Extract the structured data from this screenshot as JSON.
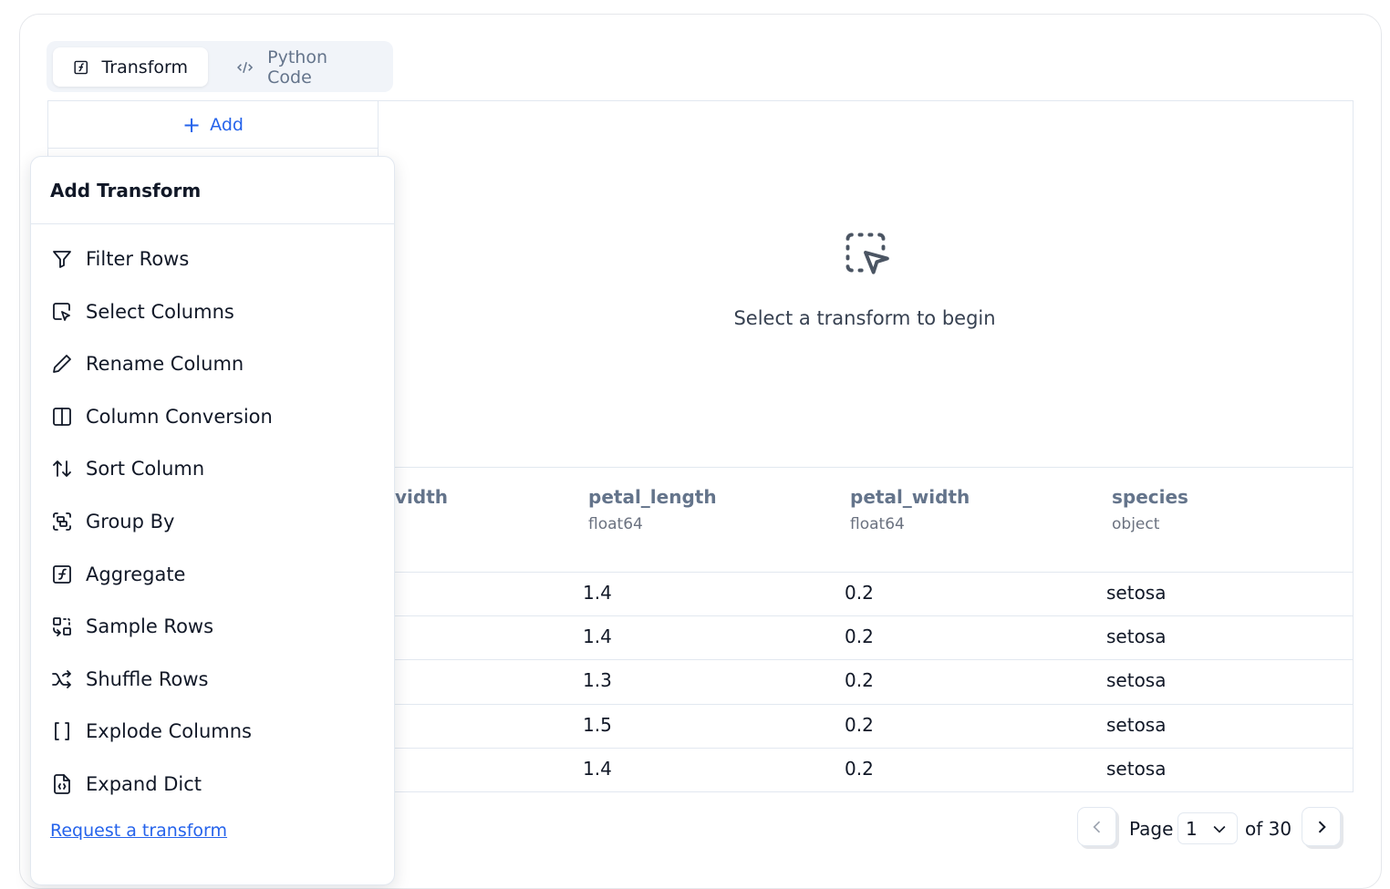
{
  "tabs": [
    {
      "label": "Transform",
      "icon": "function-square-icon",
      "active": true
    },
    {
      "label": "Python Code",
      "icon": "code-icon",
      "active": false
    }
  ],
  "add_label": "Add",
  "empty_state": {
    "icon": "dashed-select-pointer-icon",
    "text": "Select a transform to begin"
  },
  "popup": {
    "title": "Add Transform",
    "items": [
      {
        "label": "Filter Rows",
        "icon": "filter-icon"
      },
      {
        "label": "Select Columns",
        "icon": "select-columns-icon"
      },
      {
        "label": "Rename Column",
        "icon": "pencil-icon"
      },
      {
        "label": "Column Conversion",
        "icon": "columns-icon"
      },
      {
        "label": "Sort Column",
        "icon": "sort-arrows-icon"
      },
      {
        "label": "Group By",
        "icon": "group-icon"
      },
      {
        "label": "Aggregate",
        "icon": "function-square-icon"
      },
      {
        "label": "Sample Rows",
        "icon": "sample-icon"
      },
      {
        "label": "Shuffle Rows",
        "icon": "shuffle-icon"
      },
      {
        "label": "Explode Columns",
        "icon": "brackets-icon"
      },
      {
        "label": "Expand Dict",
        "icon": "file-json-icon"
      }
    ],
    "request_link": "Request a transform"
  },
  "table": {
    "columns": [
      {
        "name": "vidth",
        "type": ""
      },
      {
        "name": "petal_length",
        "type": "float64"
      },
      {
        "name": "petal_width",
        "type": "float64"
      },
      {
        "name": "species",
        "type": "object"
      }
    ],
    "rows": [
      [
        "1.4",
        "0.2",
        "setosa"
      ],
      [
        "1.4",
        "0.2",
        "setosa"
      ],
      [
        "1.3",
        "0.2",
        "setosa"
      ],
      [
        "1.5",
        "0.2",
        "setosa"
      ],
      [
        "1.4",
        "0.2",
        "setosa"
      ]
    ]
  },
  "pagination": {
    "page_label": "Page",
    "current": "1",
    "of_label": "of 30"
  },
  "colors": {
    "accent": "#2563eb",
    "tab_bg": "#f1f4f9",
    "border": "#e2e8f0"
  }
}
